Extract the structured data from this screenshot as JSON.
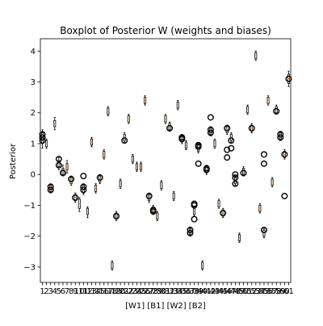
{
  "chart_data": {
    "type": "box",
    "title": "Boxplot of Posterior W (weights and biases)",
    "xlabel": "[W1] [B1] [W2] [B2]",
    "ylabel": "Posterior",
    "ylim": [
      -3.5,
      4.4
    ],
    "yticks": [
      -3,
      -2,
      -1,
      0,
      1,
      2,
      3,
      4
    ],
    "xlim": [
      0.5,
      61.5
    ],
    "xtick_labels": [
      "1",
      "2",
      "3",
      "4",
      "5",
      "6",
      "7",
      "8",
      "9",
      "10",
      "11",
      "12",
      "13",
      "14",
      "15",
      "16",
      "17",
      "18",
      "19",
      "20",
      "21",
      "22",
      "23",
      "24",
      "25",
      "26",
      "27",
      "28",
      "29",
      "30",
      "31",
      "32",
      "33",
      "34",
      "35",
      "36",
      "37",
      "38",
      "39",
      "40",
      "41",
      "42",
      "43",
      "44",
      "45",
      "46",
      "47",
      "48",
      "49",
      "50",
      "51",
      "52",
      "53",
      "54",
      "55",
      "56",
      "57",
      "58",
      "59",
      "60",
      "61"
    ],
    "grid": false,
    "median_color": "#ff7f0e",
    "box_color": "#000000",
    "medians": [
      1.2,
      1.0,
      -0.45,
      1.65,
      0.35,
      0.1,
      0.25,
      -0.2,
      -0.75,
      -0.95,
      -0.5,
      -1.2,
      1.05,
      -0.45,
      -0.15,
      0.65,
      2.05,
      -2.95,
      -1.35,
      -0.3,
      1.2,
      1.8,
      0.5,
      0.25,
      0.25,
      2.4,
      -0.75,
      -1.15,
      -1.35,
      -0.35,
      1.8,
      1.55,
      -0.7,
      2.25,
      1.15,
      0.95,
      -1.85,
      -1.2,
      0.85,
      -2.95,
      0.15,
      1.4,
      1.0,
      -0.95,
      -1.25,
      1.45,
      1.2,
      -0.2,
      -2.05,
      0.1,
      2.1,
      1.5,
      3.85,
      -1.1,
      -1.9,
      2.4,
      -0.25,
      2.1,
      1.25,
      0.65,
      3.1
    ],
    "boxes": [
      {
        "q1": 1.0,
        "q3": 1.35,
        "wlo": 0.85,
        "whi": 1.45,
        "outliers": [
          1.1,
          1.2,
          1.3
        ]
      },
      {
        "q1": 0.9,
        "q3": 1.1,
        "wlo": 0.85,
        "whi": 1.15,
        "outliers": []
      },
      {
        "q1": -0.55,
        "q3": -0.35,
        "wlo": -0.6,
        "whi": -0.3,
        "outliers": [
          -0.4,
          -0.5
        ]
      },
      {
        "q1": 1.55,
        "q3": 1.75,
        "wlo": 1.45,
        "whi": 1.85,
        "outliers": []
      },
      {
        "q1": 0.25,
        "q3": 0.45,
        "wlo": 0.15,
        "whi": 0.55,
        "outliers": [
          0.5,
          0.3
        ]
      },
      {
        "q1": 0.0,
        "q3": 0.2,
        "wlo": -0.05,
        "whi": 0.3,
        "outliers": [
          0.05
        ]
      },
      {
        "q1": 0.15,
        "q3": 0.35,
        "wlo": 0.05,
        "whi": 0.45,
        "outliers": []
      },
      {
        "q1": -0.3,
        "q3": -0.1,
        "wlo": -0.35,
        "whi": -0.05,
        "outliers": [
          -0.15
        ]
      },
      {
        "q1": -0.85,
        "q3": -0.65,
        "wlo": -0.9,
        "whi": -0.6,
        "outliers": [
          -0.75
        ]
      },
      {
        "q1": -1.1,
        "q3": -0.8,
        "wlo": -1.2,
        "whi": -0.75,
        "outliers": []
      },
      {
        "q1": -0.6,
        "q3": -0.35,
        "wlo": -0.65,
        "whi": -0.3,
        "outliers": [
          -0.05,
          -0.4,
          -0.5
        ]
      },
      {
        "q1": -1.3,
        "q3": -1.1,
        "wlo": -1.4,
        "whi": -1.05,
        "outliers": []
      },
      {
        "q1": 0.95,
        "q3": 1.15,
        "wlo": 0.9,
        "whi": 1.2,
        "outliers": []
      },
      {
        "q1": -0.55,
        "q3": -0.35,
        "wlo": -0.6,
        "whi": -0.3,
        "outliers": []
      },
      {
        "q1": -0.25,
        "q3": -0.05,
        "wlo": -0.3,
        "whi": 0.0,
        "outliers": [
          -0.1
        ]
      },
      {
        "q1": 0.55,
        "q3": 0.75,
        "wlo": 0.5,
        "whi": 0.8,
        "outliers": []
      },
      {
        "q1": 1.95,
        "q3": 2.15,
        "wlo": 1.9,
        "whi": 2.2,
        "outliers": []
      },
      {
        "q1": -3.05,
        "q3": -2.85,
        "wlo": -3.1,
        "whi": -2.8,
        "outliers": []
      },
      {
        "q1": -1.45,
        "q3": -1.25,
        "wlo": -1.5,
        "whi": -1.2,
        "outliers": [
          -1.35
        ]
      },
      {
        "q1": -0.4,
        "q3": -0.2,
        "wlo": -0.45,
        "whi": -0.15,
        "outliers": []
      },
      {
        "q1": 1.1,
        "q3": 1.3,
        "wlo": 1.05,
        "whi": 1.35,
        "outliers": [
          1.1
        ]
      },
      {
        "q1": 1.7,
        "q3": 1.9,
        "wlo": 1.65,
        "whi": 1.95,
        "outliers": []
      },
      {
        "q1": 0.4,
        "q3": 0.6,
        "wlo": 0.35,
        "whi": 0.65,
        "outliers": []
      },
      {
        "q1": 0.15,
        "q3": 0.35,
        "wlo": 0.1,
        "whi": 0.4,
        "outliers": []
      },
      {
        "q1": 0.15,
        "q3": 0.35,
        "wlo": 0.1,
        "whi": 0.4,
        "outliers": []
      },
      {
        "q1": 2.3,
        "q3": 2.5,
        "wlo": 2.25,
        "whi": 2.55,
        "outliers": []
      },
      {
        "q1": -0.85,
        "q3": -0.65,
        "wlo": -0.9,
        "whi": -0.6,
        "outliers": [
          -0.7
        ]
      },
      {
        "q1": -1.25,
        "q3": -1.05,
        "wlo": -1.3,
        "whi": -1.0,
        "outliers": [
          -1.15,
          -1.2
        ]
      },
      {
        "q1": -1.45,
        "q3": -1.25,
        "wlo": -1.5,
        "whi": -1.2,
        "outliers": []
      },
      {
        "q1": -0.45,
        "q3": -0.25,
        "wlo": -0.5,
        "whi": -0.2,
        "outliers": []
      },
      {
        "q1": 1.7,
        "q3": 1.9,
        "wlo": 1.65,
        "whi": 1.95,
        "outliers": []
      },
      {
        "q1": 1.45,
        "q3": 1.65,
        "wlo": 1.4,
        "whi": 1.7,
        "outliers": [
          1.5
        ]
      },
      {
        "q1": -0.8,
        "q3": -0.6,
        "wlo": -0.85,
        "whi": -0.55,
        "outliers": []
      },
      {
        "q1": 2.15,
        "q3": 2.35,
        "wlo": 2.1,
        "whi": 2.4,
        "outliers": []
      },
      {
        "q1": 1.05,
        "q3": 1.25,
        "wlo": 1.0,
        "whi": 1.3,
        "outliers": [
          1.15,
          1.2
        ]
      },
      {
        "q1": 0.85,
        "q3": 1.05,
        "wlo": 0.8,
        "whi": 1.1,
        "outliers": []
      },
      {
        "q1": -1.95,
        "q3": -1.75,
        "wlo": -2.0,
        "whi": -1.7,
        "outliers": [
          -1.8,
          -1.9
        ]
      },
      {
        "q1": -1.3,
        "q3": -1.1,
        "wlo": -1.35,
        "whi": -1.05,
        "outliers": [
          -1.0,
          -1.45,
          -0.95
        ]
      },
      {
        "q1": 0.75,
        "q3": 0.95,
        "wlo": 0.7,
        "whi": 1.0,
        "outliers": [
          0.9,
          0.35,
          0.95
        ]
      },
      {
        "q1": -3.05,
        "q3": -2.85,
        "wlo": -3.1,
        "whi": -2.8,
        "outliers": []
      },
      {
        "q1": 0.05,
        "q3": 0.25,
        "wlo": 0.0,
        "whi": 0.3,
        "outliers": [
          0.2,
          0.15
        ]
      },
      {
        "q1": 1.3,
        "q3": 1.5,
        "wlo": 1.25,
        "whi": 1.55,
        "outliers": [
          1.35,
          1.45,
          1.85
        ]
      },
      {
        "q1": 0.9,
        "q3": 1.1,
        "wlo": 0.85,
        "whi": 1.15,
        "outliers": []
      },
      {
        "q1": -1.05,
        "q3": -0.85,
        "wlo": -1.1,
        "whi": -0.8,
        "outliers": []
      },
      {
        "q1": -1.35,
        "q3": -1.15,
        "wlo": -1.4,
        "whi": -1.1,
        "outliers": [
          -1.25
        ]
      },
      {
        "q1": 1.35,
        "q3": 1.55,
        "wlo": 1.3,
        "whi": 1.6,
        "outliers": [
          0.8,
          0.55,
          1.5
        ]
      },
      {
        "q1": 1.1,
        "q3": 1.3,
        "wlo": 1.05,
        "whi": 1.35,
        "outliers": [
          1.1,
          0.85
        ]
      },
      {
        "q1": -0.3,
        "q3": -0.1,
        "wlo": -0.35,
        "whi": -0.05,
        "outliers": [
          0.0,
          -0.1,
          -0.3
        ]
      },
      {
        "q1": -2.15,
        "q3": -1.95,
        "wlo": -2.2,
        "whi": -1.9,
        "outliers": []
      },
      {
        "q1": 0.0,
        "q3": 0.2,
        "wlo": -0.05,
        "whi": 0.25,
        "outliers": [
          0.05
        ]
      },
      {
        "q1": 2.0,
        "q3": 2.2,
        "wlo": 1.95,
        "whi": 2.25,
        "outliers": []
      },
      {
        "q1": 1.4,
        "q3": 1.6,
        "wlo": 1.35,
        "whi": 1.65,
        "outliers": [
          1.5
        ]
      },
      {
        "q1": 3.75,
        "q3": 3.95,
        "wlo": 3.7,
        "whi": 4.0,
        "outliers": []
      },
      {
        "q1": -1.2,
        "q3": -1.0,
        "wlo": -1.25,
        "whi": -0.95,
        "outliers": []
      },
      {
        "q1": -2.0,
        "q3": -1.8,
        "wlo": -2.05,
        "whi": -1.75,
        "outliers": [
          -1.8,
          0.65,
          0.35
        ]
      },
      {
        "q1": 2.3,
        "q3": 2.5,
        "wlo": 2.25,
        "whi": 2.55,
        "outliers": []
      },
      {
        "q1": -0.35,
        "q3": -0.15,
        "wlo": -0.4,
        "whi": -0.1,
        "outliers": []
      },
      {
        "q1": 2.0,
        "q3": 2.2,
        "wlo": 1.95,
        "whi": 2.25,
        "outliers": [
          2.05
        ]
      },
      {
        "q1": 1.15,
        "q3": 1.35,
        "wlo": 1.1,
        "whi": 1.4,
        "outliers": [
          1.2,
          1.3
        ]
      },
      {
        "q1": 0.55,
        "q3": 0.75,
        "wlo": 0.5,
        "whi": 0.8,
        "outliers": [
          0.65,
          -0.7
        ]
      },
      {
        "q1": 2.95,
        "q3": 3.25,
        "wlo": 2.85,
        "whi": 3.35,
        "outliers": [
          3.1
        ]
      }
    ]
  }
}
